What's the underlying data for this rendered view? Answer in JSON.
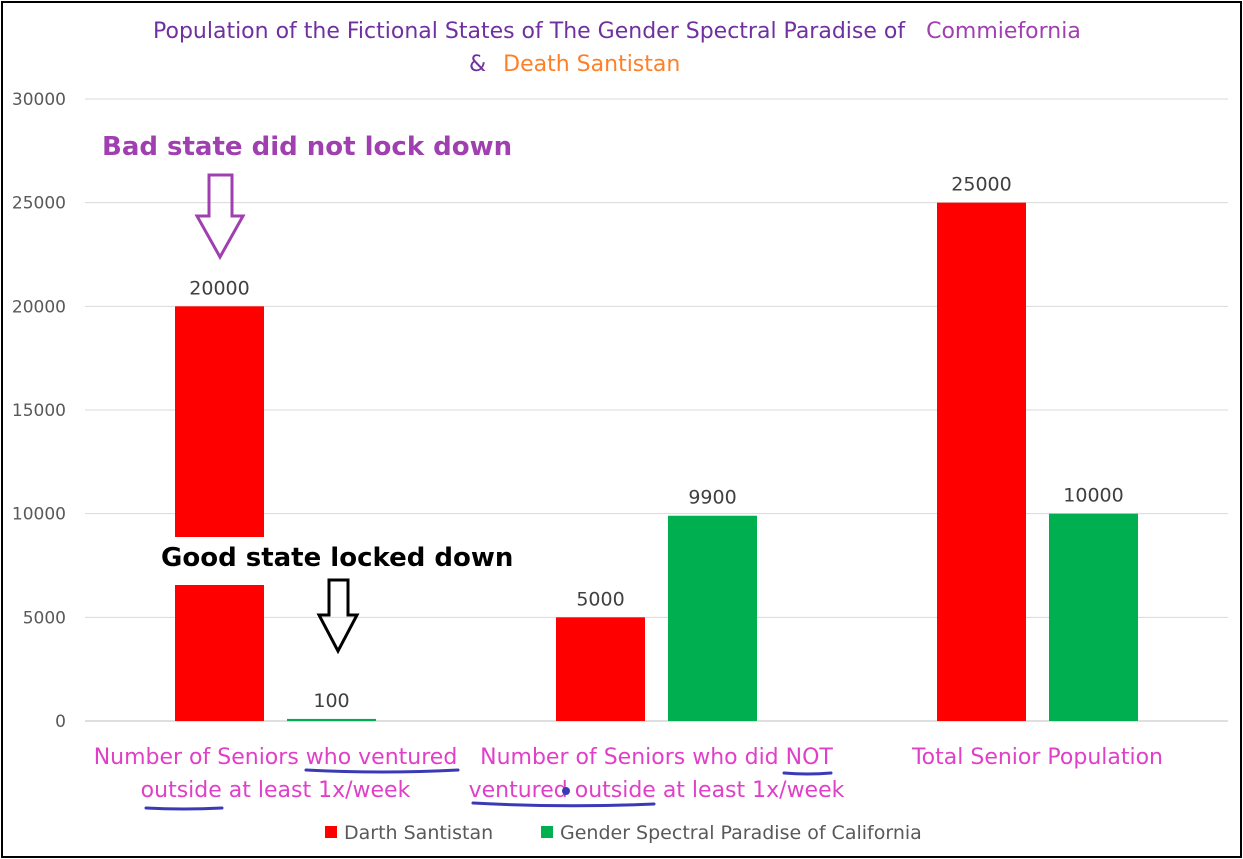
{
  "chart_data": {
    "type": "bar",
    "title_line1": "Population of the Fictional States of The Gender Spectral Paradise of",
    "title_highlight1": "Commiefornia",
    "title_ampersand": "&",
    "title_highlight2": "Death Santistan",
    "categories": [
      [
        "Number of Seniors who ventured",
        "outside at least 1x/week"
      ],
      [
        "Number of Seniors who did NOT",
        "ventured outside at least 1x/week"
      ],
      [
        "Total Senior Population"
      ]
    ],
    "series": [
      {
        "name": "Darth Santistan",
        "color": "#ff0000",
        "values": [
          20000,
          5000,
          25000
        ]
      },
      {
        "name": "Gender Spectral Paradise of California",
        "color": "#00b050",
        "values": [
          100,
          9900,
          10000
        ]
      }
    ],
    "y_ticks": [
      0,
      5000,
      10000,
      15000,
      20000,
      25000,
      30000
    ],
    "ylim": [
      0,
      30000
    ],
    "gridlines": true,
    "legend_position": "bottom",
    "annotations": {
      "bad_state": "Bad state did not lock down",
      "good_state": "Good state locked down"
    },
    "colors": {
      "title": "#7030a0",
      "commiefornia": "#a040b0",
      "death_santistan": "#ff7f27",
      "annotation_bad": "#a040b0",
      "annotation_good": "#000000",
      "category_text": "#e040c8",
      "underline": "#3a3ab8"
    }
  }
}
